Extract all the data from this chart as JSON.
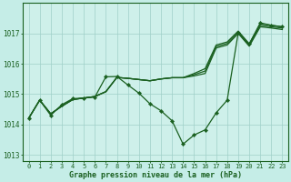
{
  "xlabel": "Graphe pression niveau de la mer (hPa)",
  "bg_color": "#c5ede7",
  "plot_bg_color": "#cef0ea",
  "grid_color": "#9fcfc8",
  "line_color": "#1a6020",
  "xlim_min": -0.5,
  "xlim_max": 23.5,
  "ylim_min": 1012.8,
  "ylim_max": 1018.0,
  "yticks": [
    1013,
    1014,
    1015,
    1016,
    1017
  ],
  "xticks": [
    0,
    1,
    2,
    3,
    4,
    5,
    6,
    7,
    8,
    9,
    10,
    11,
    12,
    13,
    14,
    15,
    16,
    17,
    18,
    19,
    20,
    21,
    22,
    23
  ],
  "series_smooth": [
    [
      1014.2,
      1014.8,
      1014.35,
      1014.6,
      1014.82,
      1014.87,
      1014.92,
      1015.08,
      1015.55,
      1015.52,
      1015.48,
      1015.44,
      1015.5,
      1015.54,
      1015.54,
      1015.6,
      1015.68,
      1016.52,
      1016.62,
      1017.0,
      1016.58,
      1017.22,
      1017.18,
      1017.13
    ],
    [
      1014.2,
      1014.8,
      1014.35,
      1014.6,
      1014.82,
      1014.87,
      1014.92,
      1015.08,
      1015.55,
      1015.52,
      1015.48,
      1015.44,
      1015.5,
      1015.54,
      1015.54,
      1015.64,
      1015.76,
      1016.57,
      1016.67,
      1017.04,
      1016.62,
      1017.27,
      1017.22,
      1017.18
    ],
    [
      1014.2,
      1014.8,
      1014.35,
      1014.6,
      1014.82,
      1014.87,
      1014.92,
      1015.08,
      1015.55,
      1015.52,
      1015.48,
      1015.44,
      1015.5,
      1015.54,
      1015.54,
      1015.68,
      1015.84,
      1016.62,
      1016.72,
      1017.08,
      1016.66,
      1017.32,
      1017.27,
      1017.22
    ]
  ],
  "series_wiggly": [
    1014.2,
    1014.8,
    1014.3,
    1014.65,
    1014.85,
    1014.87,
    1014.9,
    1015.57,
    1015.58,
    1015.3,
    1015.03,
    1014.68,
    1014.45,
    1014.12,
    1013.35,
    1013.65,
    1013.82,
    1014.38,
    1014.8,
    1017.02,
    1016.65,
    1017.35,
    1017.27,
    1017.22
  ],
  "marker": "D",
  "marker_size": 2.2,
  "linewidth": 0.9,
  "xlabel_fontsize": 6.0,
  "tick_fontsize": 5.0
}
